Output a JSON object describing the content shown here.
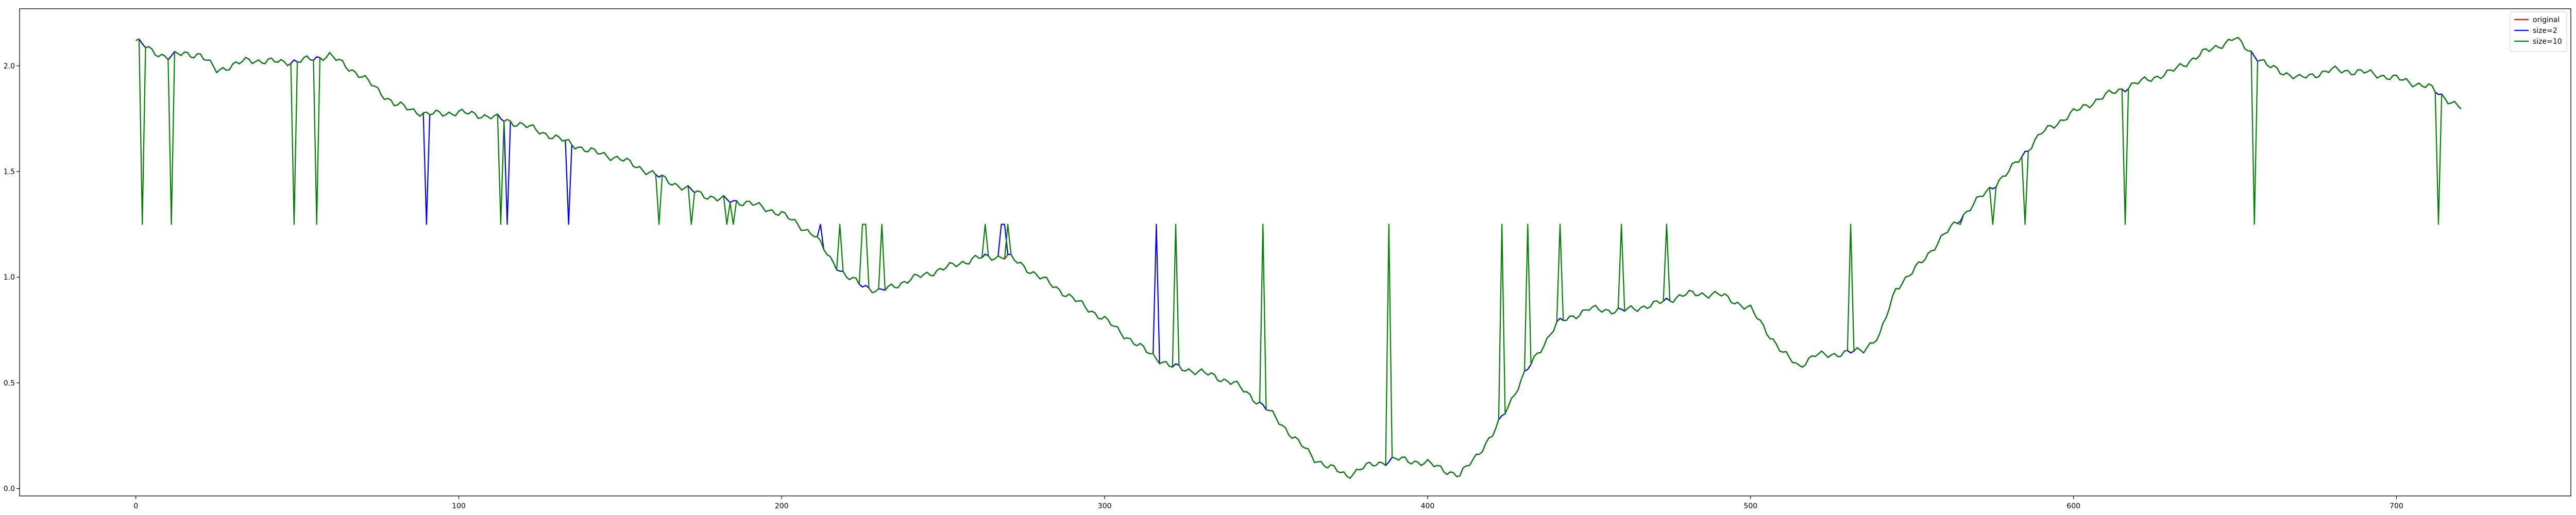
{
  "chart_data": {
    "type": "line",
    "title": "",
    "xlabel": "",
    "ylabel": "",
    "xlim": [
      -36,
      754
    ],
    "ylim": [
      -0.035,
      2.27
    ],
    "x_ticks": [
      0,
      100,
      200,
      300,
      400,
      500,
      600,
      700
    ],
    "y_ticks": [
      0.0,
      0.5,
      1.0,
      1.5,
      2.0
    ],
    "x_tick_labels": [
      "0",
      "100",
      "200",
      "300",
      "400",
      "500",
      "600",
      "700"
    ],
    "y_tick_labels": [
      "0.0",
      "0.5",
      "1.0",
      "1.5",
      "2.0"
    ],
    "grid": false,
    "legend_position": "top-right",
    "base_curve": {
      "x": [
        0,
        5,
        10,
        15,
        20,
        25,
        30,
        35,
        40,
        50,
        60,
        70,
        80,
        90,
        100,
        110,
        120,
        130,
        140,
        150,
        160,
        170,
        180,
        190,
        200,
        210,
        215,
        220,
        230,
        240,
        250,
        260,
        270,
        280,
        290,
        300,
        310,
        320,
        330,
        340,
        350,
        360,
        365,
        370,
        375,
        380,
        390,
        400,
        410,
        420,
        430,
        440,
        450,
        460,
        470,
        480,
        490,
        500,
        510,
        515,
        520,
        530,
        535,
        540,
        545,
        550,
        560,
        570,
        580,
        590,
        600,
        610,
        620,
        630,
        640,
        650,
        660,
        670,
        680,
        690,
        700,
        710,
        720
      ],
      "y": [
        2.12,
        2.07,
        2.04,
        2.06,
        2.05,
        1.98,
        2.0,
        2.03,
        2.02,
        2.02,
        2.05,
        1.95,
        1.82,
        1.77,
        1.78,
        1.76,
        1.72,
        1.66,
        1.6,
        1.56,
        1.49,
        1.42,
        1.37,
        1.35,
        1.3,
        1.2,
        1.09,
        1.0,
        0.93,
        0.99,
        1.04,
        1.09,
        1.1,
        1.0,
        0.9,
        0.8,
        0.68,
        0.58,
        0.55,
        0.5,
        0.38,
        0.22,
        0.14,
        0.1,
        0.06,
        0.1,
        0.14,
        0.12,
        0.06,
        0.25,
        0.54,
        0.78,
        0.85,
        0.84,
        0.87,
        0.92,
        0.92,
        0.85,
        0.64,
        0.58,
        0.63,
        0.64,
        0.66,
        0.72,
        0.95,
        1.02,
        1.2,
        1.36,
        1.5,
        1.68,
        1.78,
        1.86,
        1.92,
        1.97,
        2.06,
        2.13,
        2.0,
        1.94,
        1.98,
        1.97,
        1.94,
        1.9,
        1.8
      ]
    },
    "series": [
      {
        "name": "original",
        "color": "#ff0000",
        "spike_indices": []
      },
      {
        "name": "size=2",
        "color": "#0000ff",
        "spike_indices": [
          90,
          115,
          134,
          212,
          268,
          269,
          316
        ]
      },
      {
        "name": "size=10",
        "color": "#008000",
        "spike_indices": [
          2,
          11,
          49,
          56,
          113,
          162,
          172,
          183,
          185,
          218,
          225,
          226,
          231,
          263,
          270,
          322,
          349,
          388,
          423,
          431,
          441,
          460,
          474,
          531,
          565,
          575,
          585,
          616,
          656,
          713
        ]
      },
      {
        "spike_value": 1.25
      }
    ]
  }
}
